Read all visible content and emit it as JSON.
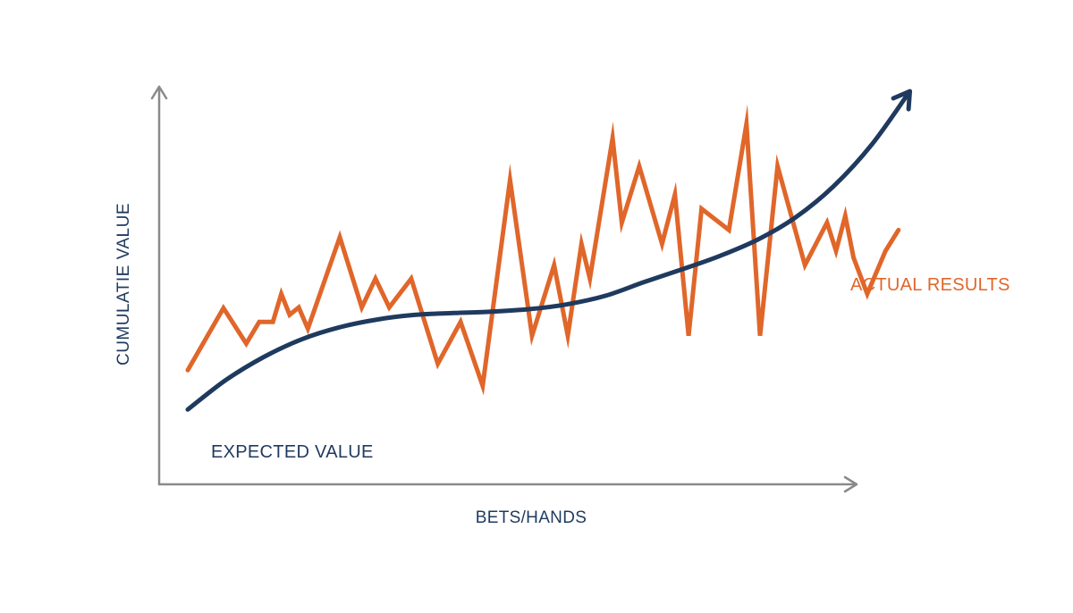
{
  "chart_data": {
    "type": "line",
    "title": "",
    "xlabel": "BETS/HANDS",
    "ylabel": "CUMULATIE VALUE",
    "xlim": [
      0,
      100
    ],
    "ylim": [
      0,
      100
    ],
    "grid": false,
    "legend": "none",
    "series": [
      {
        "name": "ACTUAL RESULTS",
        "color": "#e0662a",
        "x": [
          0,
          4.7,
          7.7,
          9.4,
          11.2,
          12.3,
          13.4,
          14.6,
          15.8,
          20.0,
          22.9,
          24.7,
          26.5,
          29.4,
          32.9,
          35.9,
          38.8,
          42.4,
          45.3,
          48.2,
          50.0,
          51.8,
          52.9,
          55.9,
          57.1,
          59.4,
          62.4,
          64.1,
          65.9,
          67.6,
          71.2,
          73.5,
          75.3,
          77.6,
          81.2,
          84.1,
          85.3,
          86.5,
          87.6,
          89.4,
          91.8,
          93.5
        ],
        "values": [
          21.1,
          38.6,
          28.6,
          34.7,
          34.7,
          42.6,
          36.7,
          38.8,
          32.8,
          58.6,
          38.8,
          46.9,
          38.8,
          46.9,
          22.9,
          34.7,
          16.7,
          74.7,
          30.8,
          50.7,
          30.8,
          56.7,
          46.9,
          86.5,
          62.7,
          78.6,
          56.7,
          70.6,
          30.8,
          66.6,
          60.6,
          90.5,
          30.8,
          78.6,
          50.7,
          62.7,
          54.7,
          64.6,
          52.8,
          42.6,
          54.7,
          60.6
        ]
      },
      {
        "name": "EXPECTED VALUE",
        "color": "#1f3a5f",
        "x": [
          0,
          5,
          10,
          15,
          20,
          25,
          30,
          35,
          40,
          45,
          50,
          55,
          60,
          65,
          70,
          75,
          80,
          85,
          90,
          95
        ],
        "values": [
          10.0,
          18.3,
          24.8,
          29.8,
          33.2,
          35.4,
          36.7,
          37.2,
          37.6,
          38.3,
          39.7,
          42.1,
          45.9,
          49.5,
          53.3,
          57.9,
          64.2,
          73.0,
          84.7,
          99.7
        ]
      }
    ]
  }
}
